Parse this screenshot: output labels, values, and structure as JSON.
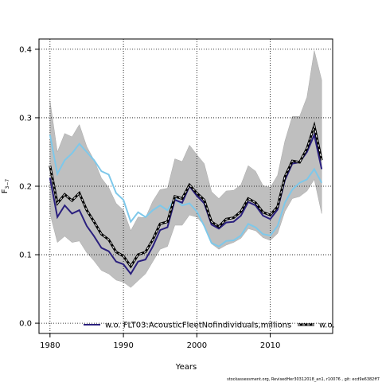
{
  "chart_data": {
    "type": "line",
    "xlabel": "Years",
    "ylabel": "F",
    "ylabel_sub": "3−7",
    "xlim": [
      1978.5,
      2018.5
    ],
    "ylim": [
      -0.015,
      0.415
    ],
    "xticks": [
      1980,
      1990,
      2000,
      2010
    ],
    "yticks": [
      0.0,
      0.1,
      0.2,
      0.3,
      0.4
    ],
    "ytick_labels": [
      "0.0",
      "0.1",
      "0.2",
      "0.3",
      "0.4"
    ],
    "grid": true,
    "x": [
      1980,
      1981,
      1982,
      1983,
      1984,
      1985,
      1986,
      1987,
      1988,
      1989,
      1990,
      1991,
      1992,
      1993,
      1994,
      1995,
      1996,
      1997,
      1998,
      1999,
      2000,
      2001,
      2002,
      2003,
      2004,
      2005,
      2006,
      2007,
      2008,
      2009,
      2010,
      2011,
      2012,
      2013,
      2014,
      2015,
      2016,
      2017
    ],
    "band": {
      "upper": [
        0.325,
        0.25,
        0.277,
        0.272,
        0.29,
        0.258,
        0.238,
        0.212,
        0.198,
        0.175,
        0.165,
        0.135,
        0.155,
        0.154,
        0.178,
        0.195,
        0.197,
        0.24,
        0.236,
        0.26,
        0.246,
        0.233,
        0.192,
        0.182,
        0.193,
        0.194,
        0.202,
        0.23,
        0.222,
        0.201,
        0.198,
        0.216,
        0.266,
        0.302,
        0.302,
        0.33,
        0.398,
        0.355
      ],
      "lower": [
        0.16,
        0.118,
        0.127,
        0.118,
        0.12,
        0.103,
        0.091,
        0.077,
        0.072,
        0.063,
        0.06,
        0.052,
        0.062,
        0.072,
        0.09,
        0.108,
        0.112,
        0.143,
        0.143,
        0.158,
        0.155,
        0.143,
        0.116,
        0.108,
        0.114,
        0.118,
        0.124,
        0.138,
        0.135,
        0.125,
        0.121,
        0.131,
        0.163,
        0.182,
        0.185,
        0.193,
        0.21,
        0.16
      ]
    },
    "series": [
      {
        "values": [
          0.23,
          0.175,
          0.188,
          0.179,
          0.19,
          0.165,
          0.148,
          0.13,
          0.122,
          0.104,
          0.098,
          0.083,
          0.1,
          0.104,
          0.122,
          0.145,
          0.148,
          0.185,
          0.182,
          0.202,
          0.19,
          0.18,
          0.148,
          0.141,
          0.152,
          0.154,
          0.163,
          0.182,
          0.176,
          0.162,
          0.158,
          0.17,
          0.214,
          0.237,
          0.235,
          0.255,
          0.288,
          0.238
        ],
        "color": "#000000",
        "style": "dashed-bold"
      },
      {
        "values": [
          0.212,
          0.155,
          0.172,
          0.16,
          0.165,
          0.142,
          0.127,
          0.11,
          0.105,
          0.09,
          0.086,
          0.072,
          0.09,
          0.093,
          0.112,
          0.136,
          0.14,
          0.18,
          0.176,
          0.2,
          0.186,
          0.175,
          0.144,
          0.138,
          0.147,
          0.148,
          0.157,
          0.177,
          0.172,
          0.157,
          0.152,
          0.166,
          0.209,
          0.233,
          0.235,
          0.25,
          0.275,
          0.225
        ],
        "color": "#2a1f7e",
        "style": "solid"
      },
      {
        "values": [
          0.275,
          0.218,
          0.238,
          0.248,
          0.262,
          0.25,
          0.238,
          0.222,
          0.217,
          0.19,
          0.18,
          0.148,
          0.162,
          0.155,
          0.165,
          0.172,
          0.165,
          0.182,
          0.172,
          0.175,
          0.163,
          0.142,
          0.117,
          0.112,
          0.12,
          0.121,
          0.128,
          0.145,
          0.14,
          0.13,
          0.128,
          0.142,
          0.176,
          0.195,
          0.205,
          0.21,
          0.225,
          0.205
        ],
        "color": "#7ec8ea",
        "style": "solid"
      }
    ],
    "legend": {
      "placement": "bottom",
      "entries": [
        {
          "label": "w.o. FLT03:AcousticFleetNofindividuals,millions",
          "color": "#2a1f7e"
        },
        {
          "label": "w.o.",
          "color": "#000000"
        }
      ]
    }
  },
  "footer": "stockassessment.org, RevisedHer30312018_an1, r10076 , git: ecd9e6382ff7"
}
